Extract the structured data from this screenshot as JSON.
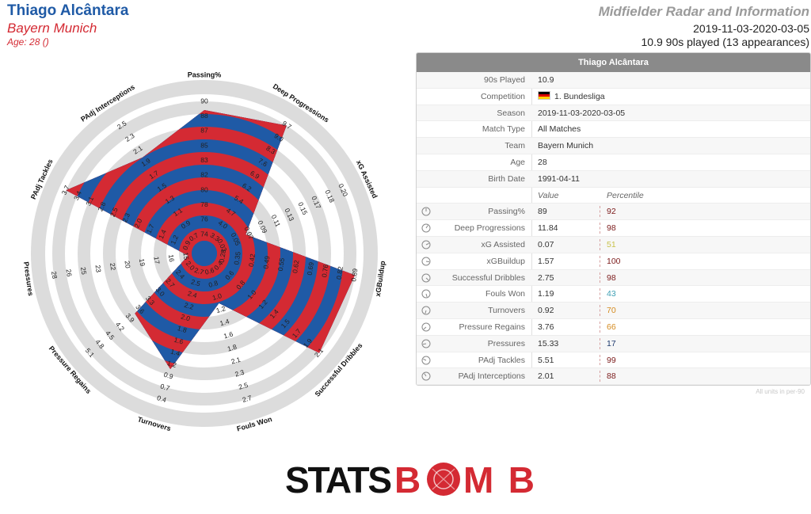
{
  "header": {
    "player_name": "Thiago Alcântara",
    "team": "Bayern Munich",
    "age_line": "Age: 28 ()",
    "report_title": "Midfielder Radar and Information",
    "date_range": "2019-11-03-2020-03-05",
    "played_line": "10.9 90s played (13 appearances)"
  },
  "panel": {
    "title": "Thiago Alcântara",
    "info_rows": [
      {
        "label": "90s Played",
        "value": "10.9"
      },
      {
        "label": "Competition",
        "value": "1. Bundesliga",
        "flag": "germany"
      },
      {
        "label": "Season",
        "value": "2019-11-03-2020-03-05"
      },
      {
        "label": "Match Type",
        "value": "All Matches"
      },
      {
        "label": "Team",
        "value": "Bayern Munich"
      },
      {
        "label": "Age",
        "value": "28"
      },
      {
        "label": "Birth Date",
        "value": "1991-04-11"
      }
    ],
    "col_value": "Value",
    "col_percentile": "Percentile",
    "stat_rows": [
      {
        "label": "Passing%",
        "value": "89",
        "percentile": "92",
        "color": "#7b1a1a"
      },
      {
        "label": "Deep Progressions",
        "value": "11.84",
        "percentile": "98",
        "color": "#7b1a1a"
      },
      {
        "label": "xG Assisted",
        "value": "0.07",
        "percentile": "51",
        "color": "#c8c24a"
      },
      {
        "label": "xGBuildup",
        "value": "1.57",
        "percentile": "100",
        "color": "#7b1a1a"
      },
      {
        "label": "Successful Dribbles",
        "value": "2.75",
        "percentile": "98",
        "color": "#7b1a1a"
      },
      {
        "label": "Fouls Won",
        "value": "1.19",
        "percentile": "43",
        "color": "#3fa0b5"
      },
      {
        "label": "Turnovers",
        "value": "0.92",
        "percentile": "70",
        "color": "#d48a1e"
      },
      {
        "label": "Pressure Regains",
        "value": "3.76",
        "percentile": "66",
        "color": "#d48a1e"
      },
      {
        "label": "Pressures",
        "value": "15.33",
        "percentile": "17",
        "color": "#1e3a6e"
      },
      {
        "label": "PAdj Tackles",
        "value": "5.51",
        "percentile": "99",
        "color": "#7b1a1a"
      },
      {
        "label": "PAdj Interceptions",
        "value": "2.01",
        "percentile": "88",
        "color": "#7b1a1a"
      }
    ],
    "footnote": "All units in per-90"
  },
  "logo": {
    "text_left": "STATS",
    "text_right": "B",
    "text_after": "MB"
  },
  "colors": {
    "blue": "#1f5aa6",
    "red": "#d42a33",
    "ring": "#dcdcdc"
  },
  "chart_data": {
    "type": "radar",
    "series": [
      {
        "values": [
          89,
          11.84,
          0.07,
          1.57,
          2.75,
          1.19,
          0.92,
          3.76,
          15.33,
          5.51,
          2.01
        ]
      }
    ],
    "axes": [
      {
        "name": "Passing%",
        "ticks": [
          "74",
          "76",
          "78",
          "80",
          "82",
          "83",
          "85",
          "87",
          "88",
          "90"
        ],
        "min": 74,
        "max": 90
      },
      {
        "name": "Deep Progressions",
        "ticks": [
          "3.3",
          "4.0",
          "4.7",
          "5.4",
          "6.2",
          "6.9",
          "7.6",
          "8.3",
          "9.0",
          "9.7"
        ],
        "min": 3.3,
        "max": 9.7
      },
      {
        "name": "xG Assisted",
        "ticks": [
          "0.03",
          "0.05",
          "0.07",
          "0.09",
          "0.11",
          "0.13",
          "0.15",
          "0.17",
          "0.18",
          "0.20"
        ],
        "min": 0.03,
        "max": 0.2
      },
      {
        "name": "xGBuildup",
        "ticks": [
          "0.28",
          "0.35",
          "0.42",
          "0.49",
          "0.55",
          "0.62",
          "0.69",
          "0.76",
          "0.82",
          "0.89"
        ],
        "min": 0.28,
        "max": 0.89
      },
      {
        "name": "Successful Dribbles",
        "ticks": [
          "0.4",
          "0.6",
          "0.8",
          "1.0",
          "1.2",
          "1.4",
          "1.5",
          "1.7",
          "1.9",
          "2.1"
        ],
        "min": 0.4,
        "max": 2.1
      },
      {
        "name": "Fouls Won",
        "ticks": [
          "0.6",
          "0.8",
          "1.0",
          "1.2",
          "1.4",
          "1.6",
          "1.8",
          "2.1",
          "2.3",
          "2.5",
          "2.7"
        ],
        "min": 0.6,
        "max": 2.7
      },
      {
        "name": "Turnovers",
        "ticks": [
          "2.7",
          "2.5",
          "2.4",
          "2.2",
          "2.0",
          "1.8",
          "1.6",
          "1.4",
          "1.2",
          "0.9",
          "0.7",
          "0.4"
        ],
        "min": 2.7,
        "max": 0.4
      },
      {
        "name": "Pressure Regains",
        "ticks": [
          "2.0",
          "2.4",
          "2.7",
          "3.0",
          "3.3",
          "3.6",
          "3.9",
          "4.2",
          "4.5",
          "4.8",
          "5.1"
        ],
        "min": 2.0,
        "max": 5.1
      },
      {
        "name": "Pressures",
        "ticks": [
          "15",
          "16",
          "17",
          "19",
          "20",
          "22",
          "23",
          "25",
          "26",
          "28"
        ],
        "min": 15,
        "max": 28
      },
      {
        "name": "PAdj Tackles",
        "ticks": [
          "0.9",
          "1.2",
          "1.4",
          "1.7",
          "2.0",
          "2.3",
          "2.5",
          "2.8",
          "3.1",
          "3.4",
          "3.7"
        ],
        "min": 0.9,
        "max": 3.7
      },
      {
        "name": "PAdj Interceptions",
        "ticks": [
          "0.7",
          "0.9",
          "1.1",
          "1.3",
          "1.5",
          "1.7",
          "1.9",
          "2.1",
          "2.3",
          "2.5"
        ],
        "min": 0.7,
        "max": 2.5
      }
    ]
  }
}
